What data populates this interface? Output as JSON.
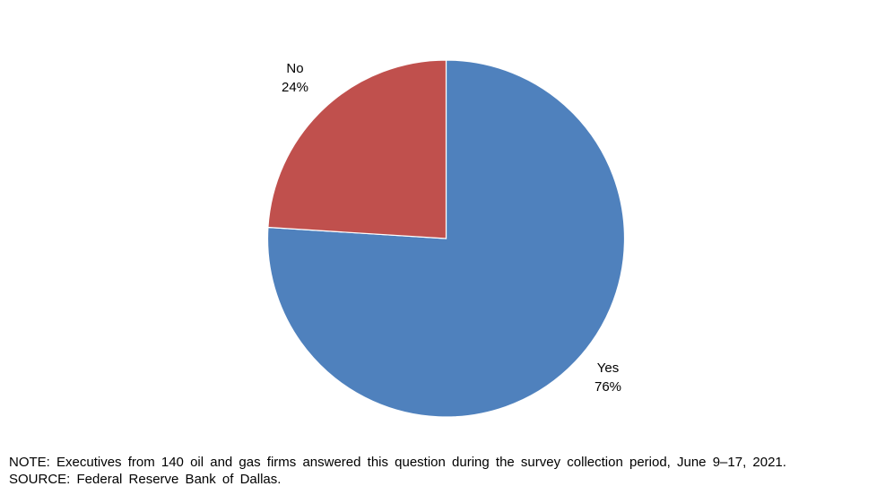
{
  "chart_data": {
    "type": "pie",
    "slices": [
      {
        "label": "Yes",
        "value": 76,
        "value_label": "76%",
        "color": "#4F81BD"
      },
      {
        "label": "No",
        "value": 24,
        "value_label": "24%",
        "color": "#C0504D"
      }
    ],
    "title": "",
    "start": "12 o'clock",
    "direction": "clockwise"
  },
  "footnotes": {
    "note": "NOTE:  Executives  from  140  oil  and  gas  firms  answered  this  question  during  the  survey  collection  period,  June  9–17,  2021.",
    "source": "SOURCE:  Federal  Reserve  Bank  of  Dallas."
  }
}
